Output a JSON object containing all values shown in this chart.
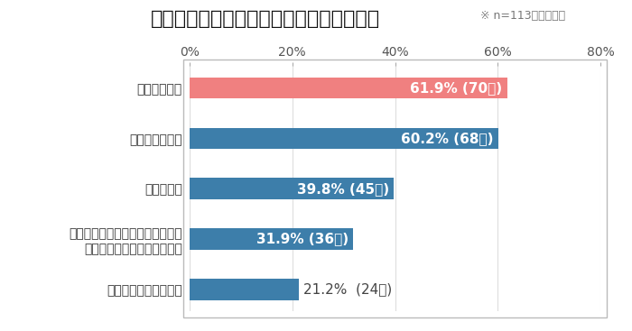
{
  "title": "『図』　生産性が向上している広告出稿業務",
  "title_display": "【図】生産性が向上している広告出稿業務",
  "note": "※ n=113／複数回答",
  "categories": [
    "上長・経営陣への報告",
    "出稿・運用した結果の振り返り、\n戦略戦術設計のアップデート",
    "出稿・運用",
    "実行プラン策定",
    "戦略戦術設計"
  ],
  "values": [
    21.2,
    31.9,
    39.8,
    60.2,
    61.9
  ],
  "bar_labels_bold": [
    "31.9% (36名)",
    "39.8% (45名)",
    "60.2% (68名)",
    "61.9% (70名)"
  ],
  "bar_label_outside": "21.2%  (24名)",
  "bar_colors": [
    "#3d7eaa",
    "#3d7eaa",
    "#3d7eaa",
    "#3d7eaa",
    "#f08080"
  ],
  "xlim": [
    0,
    80
  ],
  "xticks": [
    0,
    20,
    40,
    60,
    80
  ],
  "xticklabels": [
    "0%",
    "20%",
    "40%",
    "60%",
    "80%"
  ],
  "bar_height": 0.42,
  "title_fontsize": 16,
  "note_fontsize": 9,
  "tick_fontsize": 10,
  "label_fontsize_inside": 11,
  "label_fontsize_outside": 11,
  "ylabel_fontsize": 10,
  "background_color": "#ffffff",
  "plot_bg_color": "#ffffff",
  "border_color": "#bbbbbb",
  "grid_color": "#dddddd"
}
